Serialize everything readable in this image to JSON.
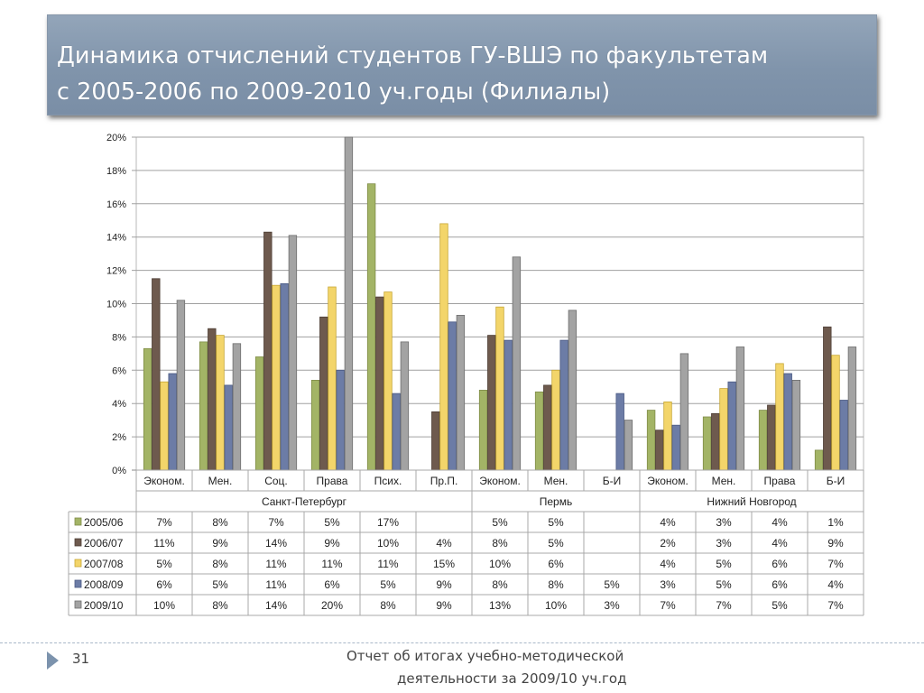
{
  "slide": {
    "title_line1": "Динамика отчислений студентов ГУ-ВШЭ по факультетам",
    "title_line2": "с 2005-2006 по 2009-2010 уч.годы (Филиалы)",
    "number": "31",
    "footer_line1": "Отчет об итогах учебно-методической",
    "footer_line2": "деятельности за 2009/10 уч.год"
  },
  "colors": {
    "title_bg": "#8295ac",
    "series": [
      "#a3b466",
      "#6e5a4e",
      "#f3d56a",
      "#6c7ca6",
      "#a3a3a3"
    ],
    "series_edge": [
      "#7f8c48",
      "#4d3e35",
      "#c7a735",
      "#4a5983",
      "#6e6e6e"
    ]
  },
  "chart_data": {
    "type": "bar",
    "ylim": [
      0,
      20
    ],
    "yticks": [
      "0%",
      "2%",
      "4%",
      "6%",
      "8%",
      "10%",
      "12%",
      "14%",
      "16%",
      "18%",
      "20%"
    ],
    "grid": true,
    "categories": [
      "Эконом.",
      "Мен.",
      "Соц.",
      "Права",
      "Псих.",
      "Пр.П.",
      "Эконом.",
      "Мен.",
      "Б-И",
      "Эконом.",
      "Мен.",
      "Права",
      "Б-И"
    ],
    "groups": [
      {
        "label": "Санкт-Петербург",
        "count": 6
      },
      {
        "label": "Пермь",
        "count": 3
      },
      {
        "label": "Нижний Новгород",
        "count": 4
      }
    ],
    "series": [
      {
        "name": "2005/06",
        "values": [
          7.3,
          7.7,
          6.8,
          5.4,
          17.2,
          null,
          4.8,
          4.7,
          null,
          3.6,
          3.2,
          3.6,
          1.2
        ],
        "labels": [
          "7%",
          "8%",
          "7%",
          "5%",
          "17%",
          "",
          "5%",
          "5%",
          "",
          "4%",
          "3%",
          "4%",
          "1%"
        ]
      },
      {
        "name": "2006/07",
        "values": [
          11.5,
          8.5,
          14.3,
          9.2,
          10.4,
          3.5,
          8.1,
          5.1,
          null,
          2.4,
          3.4,
          3.9,
          8.6
        ],
        "labels": [
          "11%",
          "9%",
          "14%",
          "9%",
          "10%",
          "4%",
          "8%",
          "5%",
          "",
          "2%",
          "3%",
          "4%",
          "9%"
        ]
      },
      {
        "name": "2007/08",
        "values": [
          5.3,
          8.1,
          11.1,
          11.0,
          10.7,
          14.8,
          9.8,
          6.0,
          null,
          4.1,
          4.9,
          6.4,
          6.9
        ],
        "labels": [
          "5%",
          "8%",
          "11%",
          "11%",
          "11%",
          "15%",
          "10%",
          "6%",
          "",
          "4%",
          "5%",
          "6%",
          "7%"
        ]
      },
      {
        "name": "2008/09",
        "values": [
          5.8,
          5.1,
          11.2,
          6.0,
          4.6,
          8.9,
          7.8,
          7.8,
          4.6,
          2.7,
          5.3,
          5.8,
          4.2
        ],
        "labels": [
          "6%",
          "5%",
          "11%",
          "6%",
          "5%",
          "9%",
          "8%",
          "8%",
          "5%",
          "3%",
          "5%",
          "6%",
          "4%"
        ]
      },
      {
        "name": "2009/10",
        "values": [
          10.2,
          7.6,
          14.1,
          20.0,
          7.7,
          9.3,
          12.8,
          9.6,
          3.0,
          7.0,
          7.4,
          5.4,
          7.4
        ],
        "labels": [
          "10%",
          "8%",
          "14%",
          "20%",
          "8%",
          "9%",
          "13%",
          "10%",
          "3%",
          "7%",
          "7%",
          "5%",
          "7%"
        ]
      }
    ]
  }
}
